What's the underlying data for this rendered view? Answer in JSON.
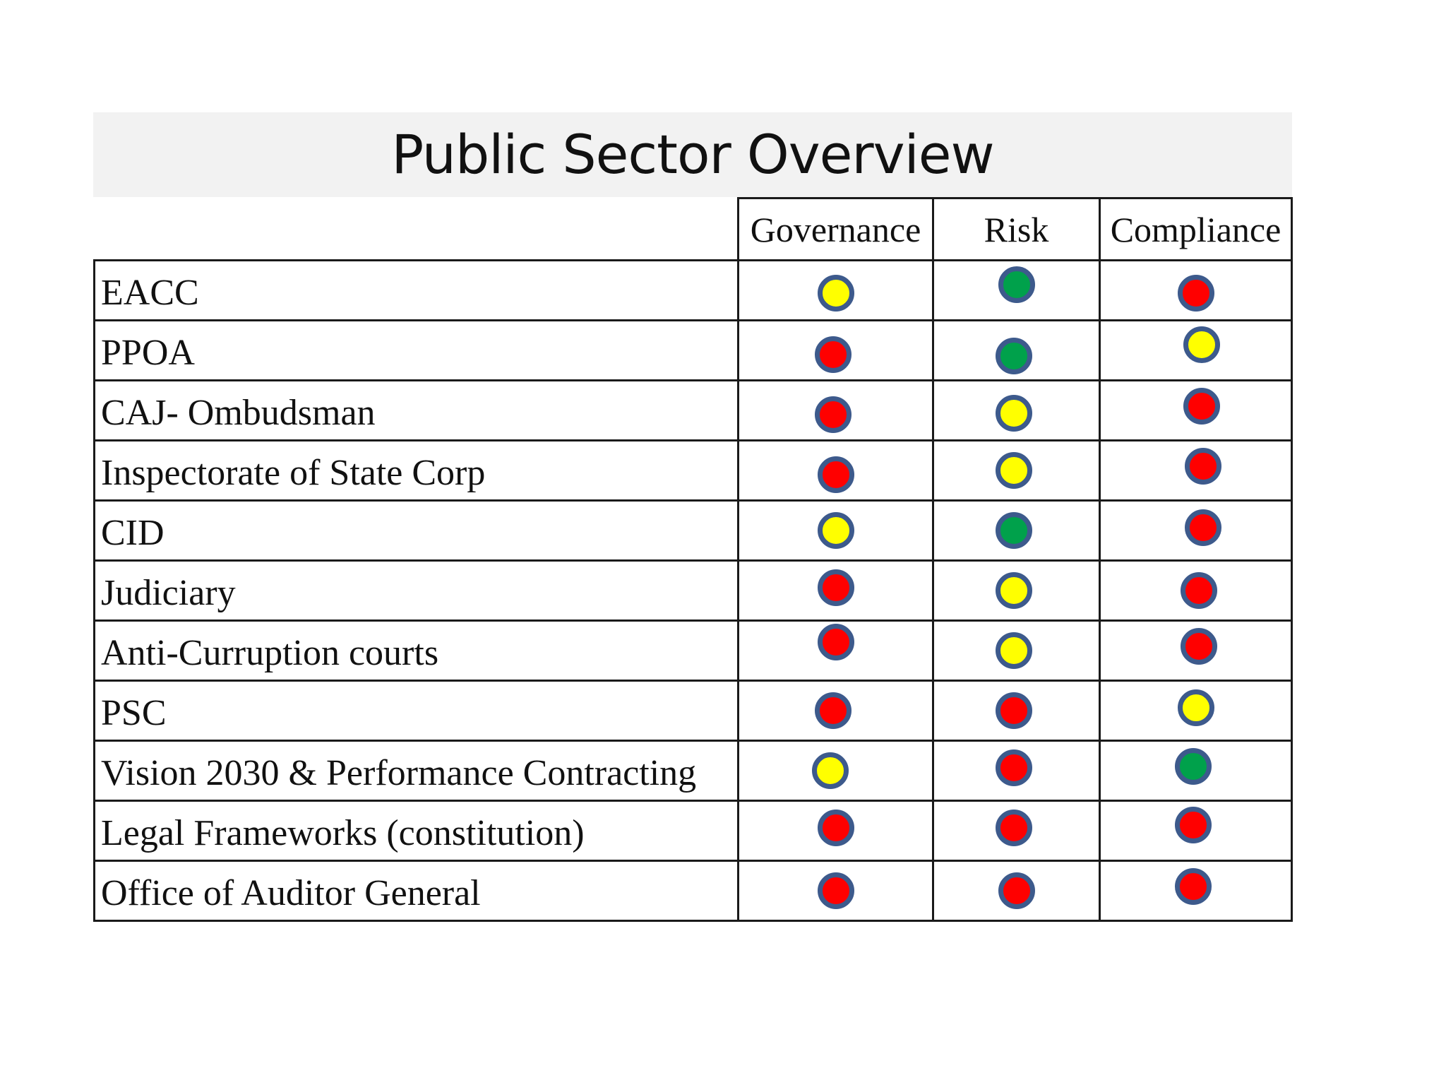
{
  "title": "Public Sector Overview",
  "columns": [
    "Governance",
    "Risk",
    "Compliance"
  ],
  "status_colors": {
    "yellow": "#ffff00",
    "red": "#ff0000",
    "green": "#00a14b",
    "ring": "#3d5a8c"
  },
  "rows": [
    {
      "label": "EACC",
      "governance": "yellow",
      "risk": "green",
      "compliance": "red"
    },
    {
      "label": "PPOA",
      "governance": "red",
      "risk": "green",
      "compliance": "yellow"
    },
    {
      "label": "CAJ- Ombudsman",
      "governance": "red",
      "risk": "yellow",
      "compliance": "red"
    },
    {
      "label": "Inspectorate of State Corp",
      "governance": "red",
      "risk": "yellow",
      "compliance": "red"
    },
    {
      "label": "CID",
      "governance": "yellow",
      "risk": "green",
      "compliance": "red"
    },
    {
      "label": "Judiciary",
      "governance": "red",
      "risk": "yellow",
      "compliance": "red"
    },
    {
      "label": "Anti-Curruption courts",
      "governance": "red",
      "risk": "yellow",
      "compliance": "red"
    },
    {
      "label": "PSC",
      "governance": "red",
      "risk": "red",
      "compliance": "yellow"
    },
    {
      "label": "Vision 2030 & Performance Contracting",
      "governance": "yellow",
      "risk": "red",
      "compliance": "green"
    },
    {
      "label": "Legal Frameworks (constitution)",
      "governance": "red",
      "risk": "red",
      "compliance": "red"
    },
    {
      "label": "Office of Auditor General",
      "governance": "red",
      "risk": "red",
      "compliance": "red"
    }
  ]
}
